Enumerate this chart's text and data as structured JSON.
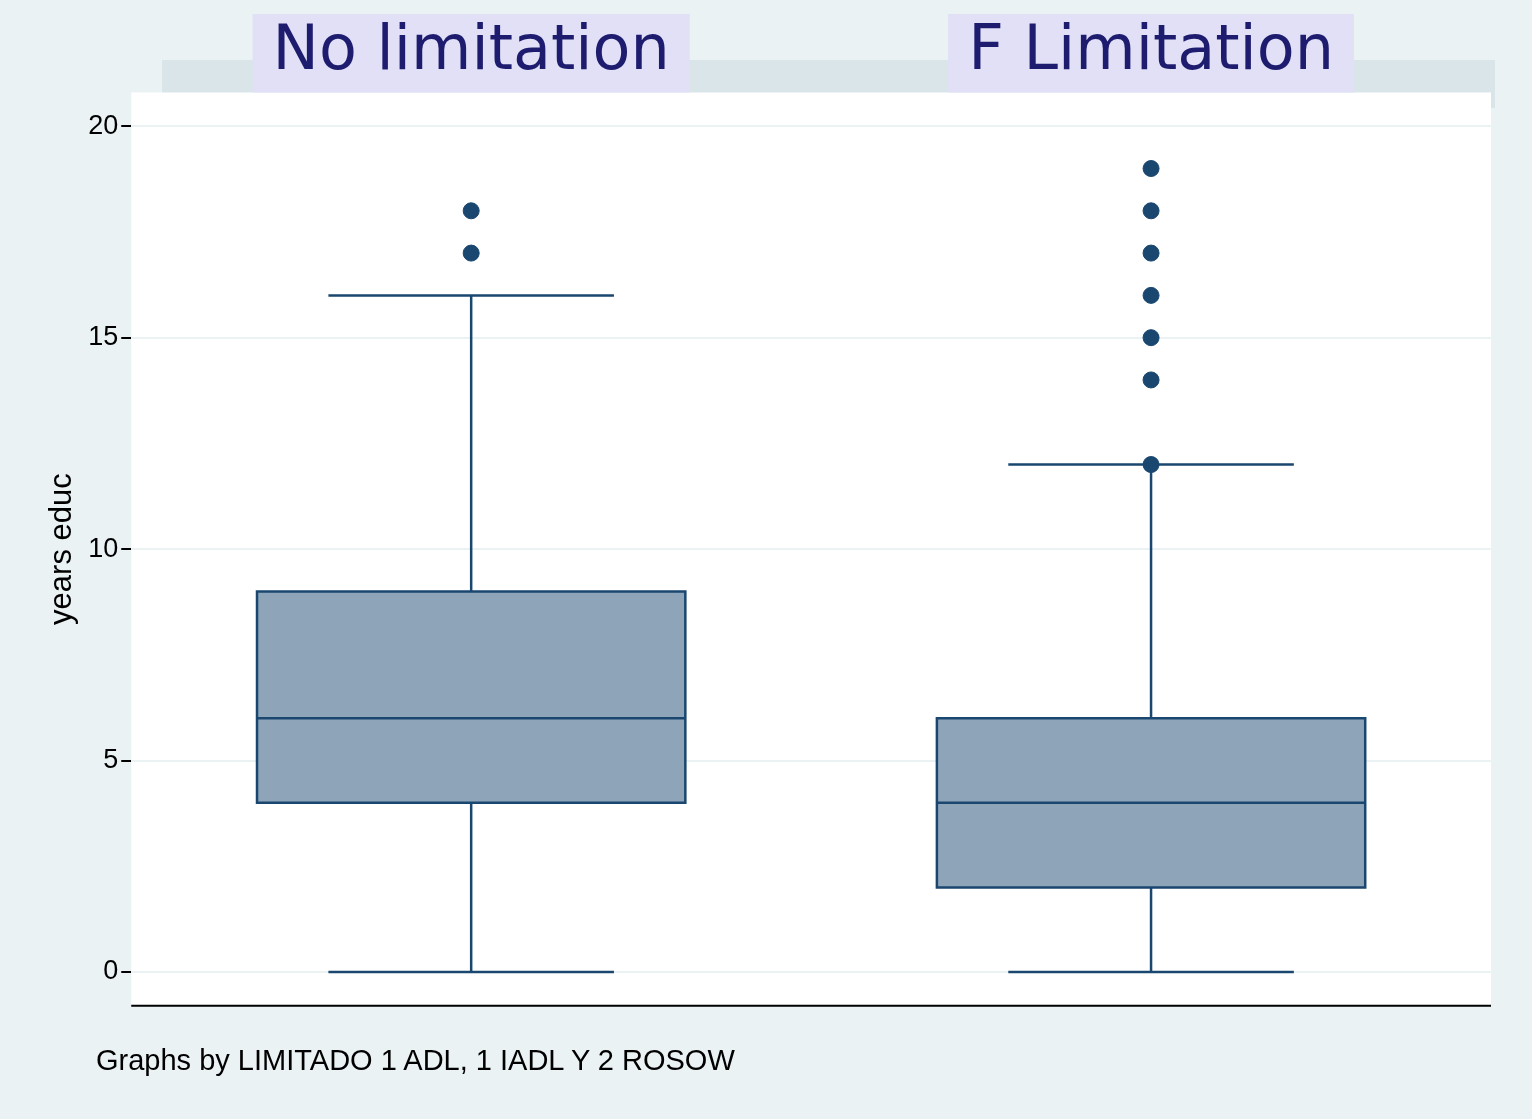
{
  "chart_data": {
    "type": "box",
    "ylabel": "years educ",
    "categories": [
      "No limitation",
      "F Limitation"
    ],
    "ylim": [
      -0.8,
      20.8
    ],
    "yticks": [
      0,
      5,
      10,
      15,
      20
    ],
    "grid": "y",
    "color": "#8ea5b9",
    "boxes": [
      {
        "low": 0,
        "q1": 4,
        "median": 6,
        "q3": 9,
        "high": 16,
        "outliers": [
          17,
          18
        ]
      },
      {
        "low": 0,
        "q1": 2,
        "median": 4,
        "q3": 6,
        "high": 12,
        "outliers": [
          12,
          14,
          15,
          16,
          17,
          18,
          19
        ]
      }
    ],
    "annotations": [
      "Graphs by LIMITADO 1 ADL, 1 IADL Y 2 ROSOW"
    ]
  }
}
